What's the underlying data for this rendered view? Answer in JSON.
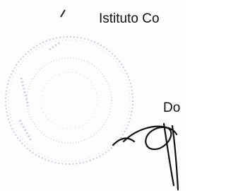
{
  "document": {
    "header": {
      "institution": "Istituto Co"
    },
    "signature_block": {
      "title": "Do"
    }
  }
}
